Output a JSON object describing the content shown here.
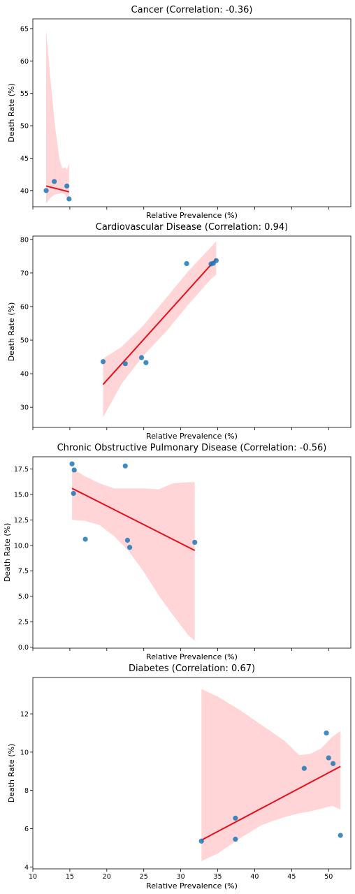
{
  "chart_data": [
    {
      "type": "scatter",
      "title": "Cancer (Correlation: -0.36)",
      "xlabel": "Relative Prevalence (%)",
      "ylabel": "Death Rate (%)",
      "xlim": [
        10,
        53
      ],
      "ylim": [
        37.5,
        66.5
      ],
      "yticks": [
        40,
        45,
        50,
        55,
        60,
        65
      ],
      "show_x_tick_labels": false,
      "points": [
        {
          "x": 11.8,
          "y": 40.0
        },
        {
          "x": 12.9,
          "y": 41.4
        },
        {
          "x": 14.6,
          "y": 40.7
        },
        {
          "x": 14.9,
          "y": 38.7
        }
      ],
      "regression": {
        "x": [
          11.8,
          14.9
        ],
        "y": [
          40.7,
          39.8
        ]
      },
      "ci_band": {
        "x": [
          11.8,
          12.4,
          13.0,
          13.6,
          14.0,
          14.4,
          14.6,
          14.9
        ],
        "upper": [
          64.7,
          57.0,
          50.0,
          44.8,
          43.4,
          43.6,
          43.2,
          44.2
        ],
        "lower": [
          38.0,
          38.9,
          39.4,
          39.5,
          39.6,
          39.3,
          38.8,
          38.2
        ]
      },
      "colors": {
        "points": "#1f77b4",
        "line": "#e8101a",
        "band": "#ffb3b6"
      }
    },
    {
      "type": "scatter",
      "title": "Cardiovascular Disease (Correlation: 0.94)",
      "xlabel": "Relative Prevalence (%)",
      "ylabel": "Death Rate (%)",
      "xlim": [
        10,
        53
      ],
      "ylim": [
        24,
        81
      ],
      "yticks": [
        30,
        40,
        50,
        60,
        70,
        80
      ],
      "show_x_tick_labels": false,
      "points": [
        {
          "x": 19.5,
          "y": 43.6
        },
        {
          "x": 22.5,
          "y": 43.0
        },
        {
          "x": 24.7,
          "y": 44.8
        },
        {
          "x": 25.3,
          "y": 43.3
        },
        {
          "x": 30.8,
          "y": 72.8
        },
        {
          "x": 34.1,
          "y": 72.7
        },
        {
          "x": 34.4,
          "y": 72.9
        },
        {
          "x": 34.8,
          "y": 73.7
        }
      ],
      "regression": {
        "x": [
          19.5,
          34.8
        ],
        "y": [
          36.8,
          74.2
        ]
      },
      "ci_band": {
        "x": [
          19.5,
          22.0,
          25.0,
          28.0,
          31.0,
          34.0,
          34.8
        ],
        "upper": [
          44.5,
          48.0,
          54.5,
          62.5,
          70.5,
          77.5,
          79.5
        ],
        "lower": [
          27.0,
          37.0,
          45.5,
          52.5,
          60.5,
          68.0,
          69.5
        ]
      },
      "colors": {
        "points": "#1f77b4",
        "line": "#e8101a",
        "band": "#ffb3b6"
      }
    },
    {
      "type": "scatter",
      "title": "Chronic Obstructive Pulmonary Disease (Correlation: -0.56)",
      "xlabel": "Relative Prevalence (%)",
      "ylabel": "Death Rate (%)",
      "xlim": [
        10,
        53
      ],
      "ylim": [
        -0.1,
        18.7
      ],
      "yticks": [
        0.0,
        2.5,
        5.0,
        7.5,
        10.0,
        12.5,
        15.0,
        17.5
      ],
      "yticklabels": [
        "0.0",
        "2.5",
        "5.0",
        "7.5",
        "10.0",
        "12.5",
        "15.0",
        "17.5"
      ],
      "show_x_tick_labels": false,
      "points": [
        {
          "x": 15.3,
          "y": 18.0
        },
        {
          "x": 15.6,
          "y": 17.4
        },
        {
          "x": 15.5,
          "y": 15.1
        },
        {
          "x": 17.1,
          "y": 10.6
        },
        {
          "x": 22.5,
          "y": 17.8
        },
        {
          "x": 22.8,
          "y": 10.5
        },
        {
          "x": 23.1,
          "y": 9.8
        },
        {
          "x": 31.9,
          "y": 10.3
        }
      ],
      "regression": {
        "x": [
          15.3,
          31.9
        ],
        "y": [
          15.6,
          9.5
        ]
      },
      "ci_band": {
        "x": [
          15.3,
          17.0,
          19.0,
          21.0,
          23.0,
          25.0,
          27.0,
          29.0,
          31.0,
          31.9
        ],
        "upper": [
          17.6,
          16.8,
          16.1,
          15.6,
          15.6,
          15.6,
          15.5,
          16.1,
          16.2,
          16.2
        ],
        "lower": [
          12.5,
          12.4,
          12.0,
          10.9,
          9.4,
          7.4,
          5.1,
          3.1,
          1.2,
          0.6
        ]
      },
      "colors": {
        "points": "#1f77b4",
        "line": "#e8101a",
        "band": "#ffb3b6"
      }
    },
    {
      "type": "scatter",
      "title": "Diabetes (Correlation: 0.67)",
      "xlabel": "Relative Prevalence (%)",
      "ylabel": "Death Rate (%)",
      "xlim": [
        10,
        53
      ],
      "ylim": [
        3.9,
        13.9
      ],
      "yticks": [
        4,
        6,
        8,
        10,
        12
      ],
      "xticks": [
        10,
        15,
        20,
        25,
        30,
        35,
        40,
        45,
        50
      ],
      "show_x_tick_labels": true,
      "points": [
        {
          "x": 32.8,
          "y": 5.35
        },
        {
          "x": 37.4,
          "y": 6.55
        },
        {
          "x": 37.4,
          "y": 5.45
        },
        {
          "x": 46.7,
          "y": 9.15
        },
        {
          "x": 49.7,
          "y": 11.0
        },
        {
          "x": 50.0,
          "y": 9.7
        },
        {
          "x": 50.6,
          "y": 9.4
        },
        {
          "x": 51.6,
          "y": 5.65
        }
      ],
      "regression": {
        "x": [
          32.8,
          51.6
        ],
        "y": [
          5.4,
          9.25
        ]
      },
      "ci_band": {
        "x": [
          32.8,
          35.0,
          38.0,
          41.0,
          44.0,
          46.0,
          47.5,
          49.0,
          50.5,
          51.6
        ],
        "upper": [
          13.3,
          12.9,
          12.2,
          11.4,
          10.6,
          9.85,
          9.9,
          10.2,
          10.8,
          11.1
        ],
        "lower": [
          4.3,
          4.7,
          5.5,
          6.2,
          6.6,
          6.8,
          6.9,
          7.05,
          7.2,
          7.0
        ]
      },
      "colors": {
        "points": "#1f77b4",
        "line": "#e8101a",
        "band": "#ffb3b6"
      }
    }
  ]
}
